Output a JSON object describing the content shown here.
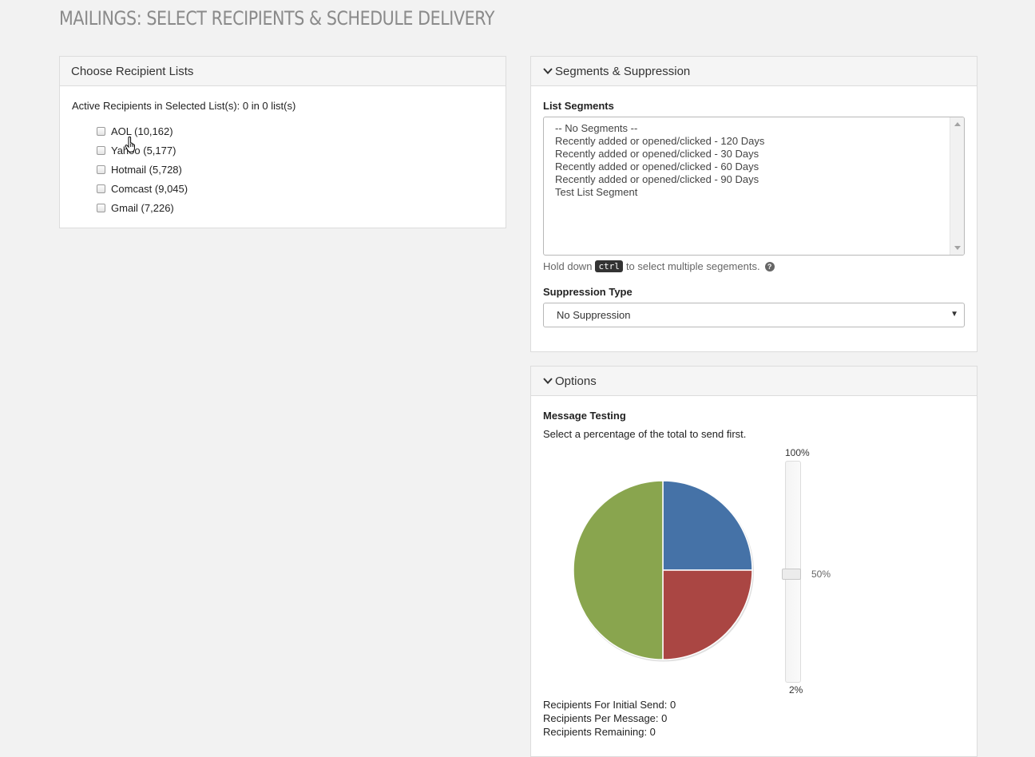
{
  "page": {
    "title": "MAILINGS: SELECT RECIPIENTS & SCHEDULE DELIVERY"
  },
  "recipients_panel": {
    "heading": "Choose Recipient Lists",
    "active_summary": "Active Recipients in Selected List(s): 0 in 0 list(s)",
    "lists": [
      {
        "label": "AOL (10,162)",
        "checked": false
      },
      {
        "label": "Yahoo (5,177)",
        "checked": false
      },
      {
        "label": "Hotmail (5,728)",
        "checked": false
      },
      {
        "label": "Comcast (9,045)",
        "checked": false
      },
      {
        "label": "Gmail (7,226)",
        "checked": false
      }
    ]
  },
  "segments_panel": {
    "heading": "Segments & Suppression",
    "segments_label": "List Segments",
    "segments": [
      "-- No Segments --",
      "Recently added or opened/clicked - 120 Days",
      "Recently added or opened/clicked - 30 Days",
      "Recently added or opened/clicked - 60 Days",
      "Recently added or opened/clicked - 90 Days",
      "Test List Segment"
    ],
    "help_prefix": "Hold down",
    "help_key": "ctrl",
    "help_suffix": "to select multiple segements.",
    "suppression_label": "Suppression Type",
    "suppression_value": "No Suppression"
  },
  "options_panel": {
    "heading": "Options",
    "testing_label": "Message Testing",
    "testing_hint": "Select a percentage of the total to send first.",
    "slider": {
      "max_label": "100%",
      "min_label": "2%",
      "value_label": "50%",
      "value": 50
    },
    "pie": [
      {
        "name": "blue",
        "fraction": 0.25,
        "color": "#4572a7"
      },
      {
        "name": "red",
        "fraction": 0.25,
        "color": "#aa4643"
      },
      {
        "name": "green",
        "fraction": 0.5,
        "color": "#89a54e"
      }
    ],
    "stats": {
      "initial_send": "Recipients For Initial Send: 0",
      "per_message": "Recipients Per Message: 0",
      "remaining": "Recipients Remaining: 0"
    }
  }
}
